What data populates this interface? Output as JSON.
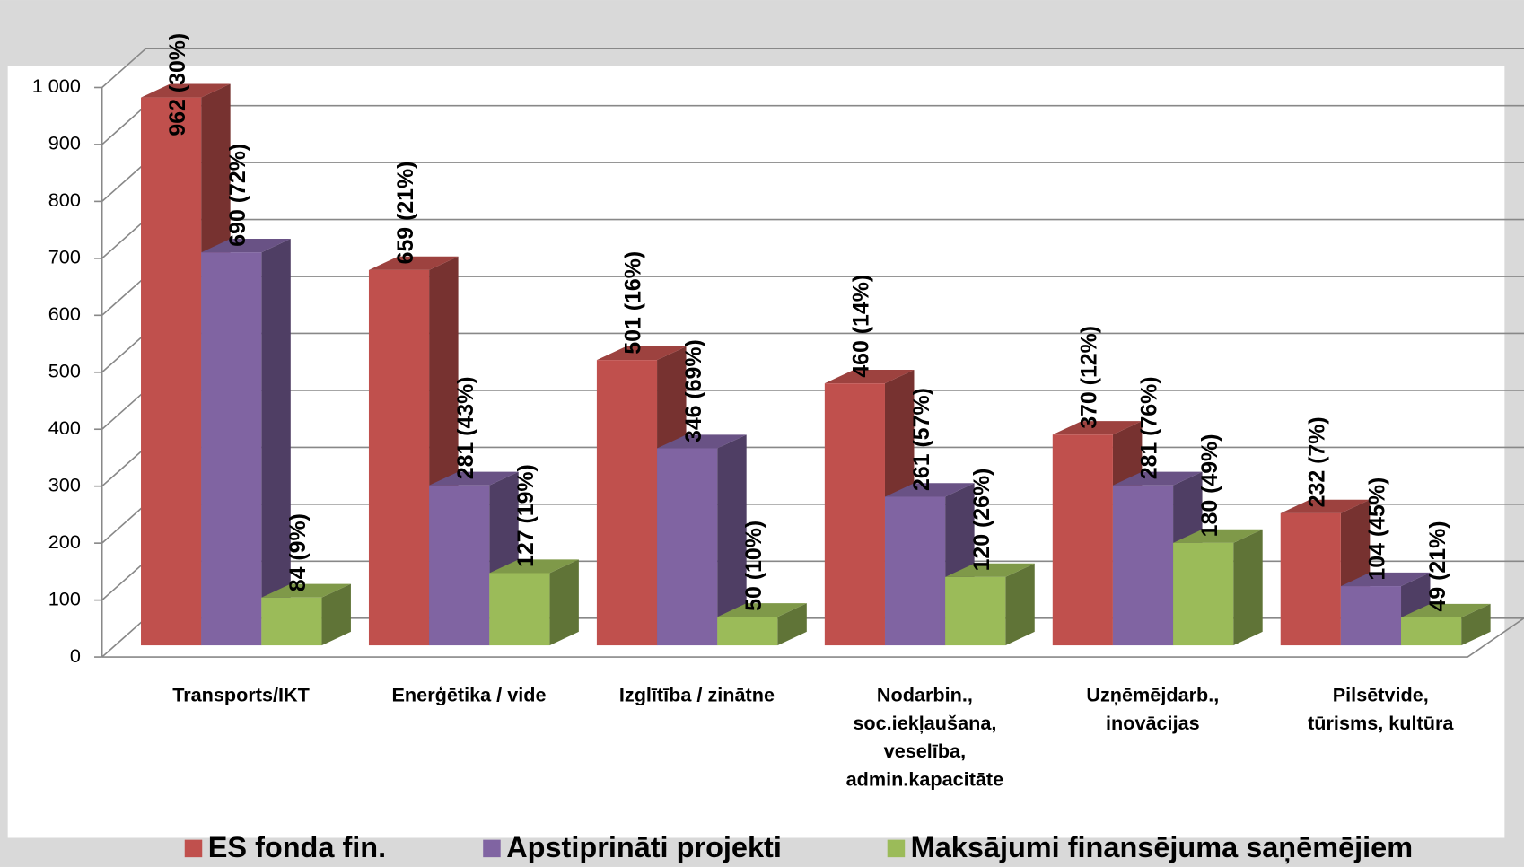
{
  "chart_data": {
    "type": "bar3d",
    "categories": [
      "Transports/IKT",
      "Enerģētika / vide",
      "Izglītība / zinātne",
      "Nodarbin.,\nsoc.iekļaušana,\nveselība,\nadmin.kapacitāte",
      "Uzņēmējdarb.,\ninovācijas",
      "Pilsētvide,\ntūrisms, kultūra"
    ],
    "series": [
      {
        "name": "ES fonda fin.",
        "color": "#c0504d",
        "values": [
          962,
          659,
          501,
          460,
          370,
          232
        ],
        "value_labels": [
          "962 (30%)",
          "659 (21%)",
          "501 (16%)",
          "460 (14%)",
          "370 (12%)",
          "232 (7%)"
        ]
      },
      {
        "name": "Apstiprināti projekti",
        "color": "#8064a2",
        "values": [
          690,
          281,
          346,
          261,
          281,
          104
        ],
        "value_labels": [
          "690 (72%)",
          "281 (43%)",
          "346 (69%)",
          "261 (57%)",
          "281 (76%)",
          "104 (45%)"
        ]
      },
      {
        "name": "Maksājumi finansējuma saņēmējiem",
        "color": "#9bbb59",
        "values": [
          84,
          127,
          50,
          120,
          180,
          49
        ],
        "value_labels": [
          "84 (9%)",
          "127 (19%)",
          "50 (10%)",
          "120 (26%)",
          "180 (49%)",
          "49 (21%)"
        ]
      }
    ],
    "ylim": [
      0,
      1000
    ],
    "yticks": [
      0,
      100,
      200,
      300,
      400,
      500,
      600,
      700,
      800,
      900,
      {
        "value": 1000,
        "label": "1 000"
      }
    ],
    "grid": true,
    "legend": "bottom"
  }
}
